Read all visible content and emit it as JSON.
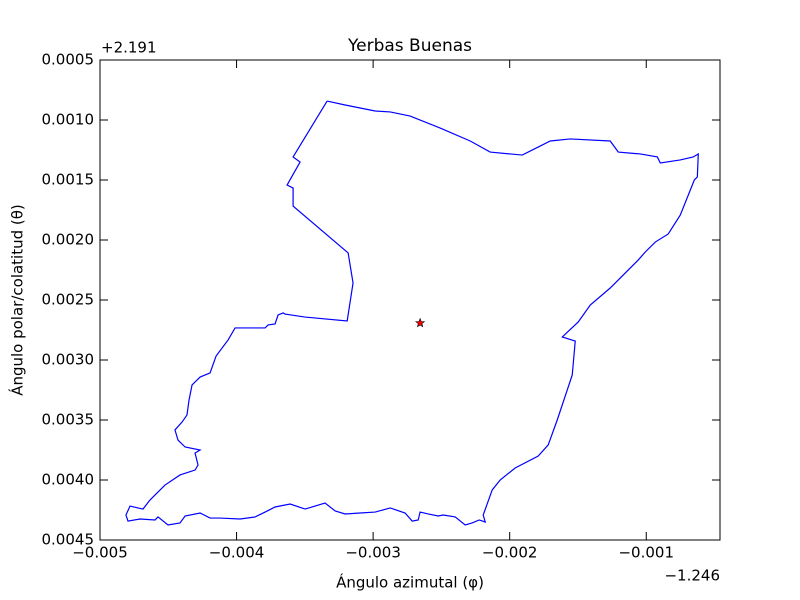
{
  "chart_data": {
    "type": "line",
    "title": "Yerbas Buenas",
    "x_label": "Ángulo azimutal (φ)",
    "y_label": "Ángulo polar/colatitud (θ)",
    "x_offset_label": "−1.246",
    "y_offset_label": "+2.191",
    "color": "#0000ff",
    "x": [
      -0.003337,
      -0.003205,
      -0.002985,
      -0.002875,
      -0.002729,
      -0.002509,
      -0.002289,
      -0.002143,
      -0.001996,
      -0.001908,
      -0.001777,
      -0.001703,
      -0.001557,
      -0.001264,
      -0.001205,
      -0.001044,
      -0.000919,
      -0.000897,
      -0.000751,
      -0.000656,
      -0.000619,
      -0.000626,
      -0.000648,
      -0.000751,
      -0.000839,
      -0.000934,
      -0.001007,
      -0.001059,
      -0.001264,
      -0.00141,
      -0.001498,
      -0.001615,
      -0.00152,
      -0.001542,
      -0.001652,
      -0.001718,
      -0.001791,
      -0.00196,
      -0.00207,
      -0.002128,
      -0.002194,
      -0.002179,
      -0.002223,
      -0.002275,
      -0.002326,
      -0.002399,
      -0.002487,
      -0.002524,
      -0.002597,
      -0.002656,
      -0.00267,
      -0.002714,
      -0.002766,
      -0.002875,
      -0.002985,
      -0.003095,
      -0.003205,
      -0.003278,
      -0.003352,
      -0.003498,
      -0.003608,
      -0.003718,
      -0.003791,
      -0.003864,
      -0.003974,
      -0.004121,
      -0.004194,
      -0.004267,
      -0.004377,
      -0.004414,
      -0.004502,
      -0.004575,
      -0.004597,
      -0.004707,
      -0.004795,
      -0.00481,
      -0.00478,
      -0.004722,
      -0.004685,
      -0.004634,
      -0.004524,
      -0.004414,
      -0.004304,
      -0.004282,
      -0.004304,
      -0.004267,
      -0.004377,
      -0.004429,
      -0.004451,
      -0.004399,
      -0.004363,
      -0.004348,
      -0.004326,
      -0.004267,
      -0.004194,
      -0.00415,
      -0.004062,
      -0.004011,
      -0.003791,
      -0.003769,
      -0.003718,
      -0.003696,
      -0.003659,
      -0.003645,
      -0.003498,
      -0.00319,
      -0.003147,
      -0.003183,
      -0.003586,
      -0.003586,
      -0.00363,
      -0.003535,
      -0.003586,
      -0.003337
    ],
    "y": [
      0.000842,
      0.000875,
      0.000925,
      0.000933,
      0.000967,
      0.001067,
      0.001175,
      0.001267,
      0.001283,
      0.001292,
      0.001217,
      0.001175,
      0.001158,
      0.001175,
      0.001267,
      0.001283,
      0.001308,
      0.001358,
      0.001333,
      0.001308,
      0.001283,
      0.001475,
      0.0015,
      0.001792,
      0.00195,
      0.002017,
      0.0021,
      0.002167,
      0.0024,
      0.002542,
      0.002683,
      0.002808,
      0.002842,
      0.003125,
      0.0035,
      0.003708,
      0.0038,
      0.0039,
      0.004,
      0.004083,
      0.004292,
      0.00435,
      0.004333,
      0.004358,
      0.004375,
      0.004308,
      0.004292,
      0.0043,
      0.004283,
      0.004267,
      0.004333,
      0.004342,
      0.004275,
      0.004233,
      0.004267,
      0.004275,
      0.004283,
      0.004258,
      0.004192,
      0.004242,
      0.0042,
      0.004225,
      0.004267,
      0.004308,
      0.004325,
      0.004317,
      0.004317,
      0.004275,
      0.0043,
      0.004358,
      0.004375,
      0.004308,
      0.004333,
      0.004325,
      0.004342,
      0.004292,
      0.004217,
      0.004233,
      0.004242,
      0.004167,
      0.004042,
      0.003958,
      0.003917,
      0.003875,
      0.003775,
      0.00375,
      0.003725,
      0.003667,
      0.003583,
      0.003517,
      0.003458,
      0.003333,
      0.003208,
      0.003142,
      0.003108,
      0.002967,
      0.002833,
      0.002733,
      0.002733,
      0.002708,
      0.0027,
      0.002625,
      0.002608,
      0.002617,
      0.002642,
      0.002675,
      0.002358,
      0.002108,
      0.001717,
      0.001567,
      0.001542,
      0.00135,
      0.001308,
      0.000842
    ],
    "point": {
      "x": -0.002656,
      "y": 0.002692,
      "color": "#ff0000"
    },
    "xlim": [
      -0.005,
      -0.00046
    ],
    "ylim": [
      0.0045,
      0.0005
    ],
    "xticks": [
      {
        "value": -0.005,
        "label": "−0.005"
      },
      {
        "value": -0.004,
        "label": "−0.004"
      },
      {
        "value": -0.003,
        "label": "−0.003"
      },
      {
        "value": -0.002,
        "label": "−0.002"
      },
      {
        "value": -0.001,
        "label": "−0.001"
      }
    ],
    "yticks": [
      {
        "value": 0.0005,
        "label": "0.0005"
      },
      {
        "value": 0.001,
        "label": "0.0010"
      },
      {
        "value": 0.0015,
        "label": "0.0015"
      },
      {
        "value": 0.002,
        "label": "0.0020"
      },
      {
        "value": 0.0025,
        "label": "0.0025"
      },
      {
        "value": 0.003,
        "label": "0.0030"
      },
      {
        "value": 0.0035,
        "label": "0.0035"
      },
      {
        "value": 0.004,
        "label": "0.0040"
      },
      {
        "value": 0.0045,
        "label": "0.0045"
      }
    ]
  }
}
